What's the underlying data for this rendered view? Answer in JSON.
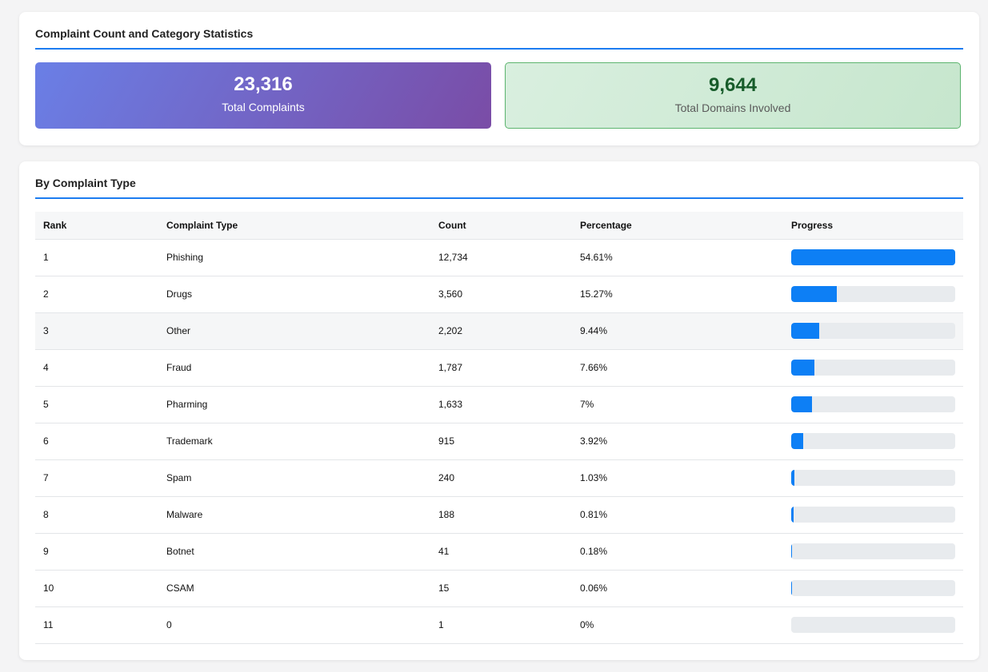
{
  "stats_card": {
    "title": "Complaint Count and Category Statistics",
    "total_complaints": {
      "value": "23,316",
      "label": "Total Complaints"
    },
    "total_domains": {
      "value": "9,644",
      "label": "Total Domains Involved"
    }
  },
  "types_card": {
    "title": "By Complaint Type",
    "columns": [
      "Rank",
      "Complaint Type",
      "Count",
      "Percentage",
      "Progress"
    ],
    "rows": [
      {
        "rank": "1",
        "type": "Phishing",
        "count": "12,734",
        "percentage": "54.61%",
        "progress": 100
      },
      {
        "rank": "2",
        "type": "Drugs",
        "count": "3,560",
        "percentage": "15.27%",
        "progress": 27.96
      },
      {
        "rank": "3",
        "type": "Other",
        "count": "2,202",
        "percentage": "9.44%",
        "progress": 17.29
      },
      {
        "rank": "4",
        "type": "Fraud",
        "count": "1,787",
        "percentage": "7.66%",
        "progress": 14.03
      },
      {
        "rank": "5",
        "type": "Pharming",
        "count": "1,633",
        "percentage": "7%",
        "progress": 12.82
      },
      {
        "rank": "6",
        "type": "Trademark",
        "count": "915",
        "percentage": "3.92%",
        "progress": 7.19
      },
      {
        "rank": "7",
        "type": "Spam",
        "count": "240",
        "percentage": "1.03%",
        "progress": 1.88
      },
      {
        "rank": "8",
        "type": "Malware",
        "count": "188",
        "percentage": "0.81%",
        "progress": 1.48
      },
      {
        "rank": "9",
        "type": "Botnet",
        "count": "41",
        "percentage": "0.18%",
        "progress": 0.32
      },
      {
        "rank": "10",
        "type": "CSAM",
        "count": "15",
        "percentage": "0.06%",
        "progress": 0.12
      },
      {
        "rank": "11",
        "type": "0",
        "count": "1",
        "percentage": "0%",
        "progress": 0
      }
    ]
  },
  "colors": {
    "accent": "#1c7cf0",
    "bar_fill": "#0d7ff5",
    "bar_track": "#e8ebee"
  }
}
